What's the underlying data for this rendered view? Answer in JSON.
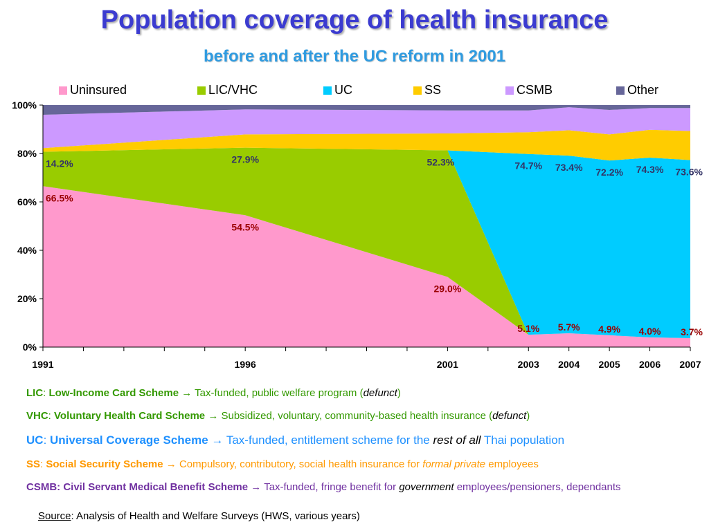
{
  "title": "Population coverage of health insurance",
  "subtitle": "before and after the UC reform in 2001",
  "chart_data": {
    "type": "area",
    "stacked": true,
    "x": [
      1991,
      1996,
      2001,
      2003,
      2004,
      2005,
      2006,
      2007
    ],
    "xticks_labeled": [
      "1991",
      "1996",
      "2001",
      "2003",
      "2004",
      "2005",
      "2006",
      "2007"
    ],
    "ylim": [
      0,
      100
    ],
    "yticks": [
      "0%",
      "20%",
      "40%",
      "60%",
      "80%",
      "100%"
    ],
    "legend_position": "top",
    "series": [
      {
        "name": "Uninsured",
        "color": "#ff99cc",
        "values": [
          66.5,
          54.5,
          29.0,
          5.1,
          5.7,
          4.9,
          4.0,
          3.7
        ]
      },
      {
        "name": "LIC/VHC",
        "color": "#99cc00",
        "values": [
          14.2,
          27.9,
          52.3,
          0.0,
          0.0,
          0.0,
          0.0,
          0.0
        ]
      },
      {
        "name": "UC",
        "color": "#00ccff",
        "values": [
          0.0,
          0.0,
          0.0,
          74.7,
          73.4,
          72.2,
          74.3,
          73.6
        ]
      },
      {
        "name": "SS",
        "color": "#ffcc00",
        "values": [
          1.5,
          5.5,
          7.0,
          9.0,
          10.5,
          10.8,
          11.5,
          12.0
        ]
      },
      {
        "name": "CSMB",
        "color": "#cc99ff",
        "values": [
          13.8,
          10.3,
          9.5,
          9.0,
          9.5,
          10.1,
          9.0,
          9.5
        ]
      },
      {
        "name": "Other",
        "color": "#666699",
        "values": [
          4.0,
          1.8,
          2.2,
          2.2,
          0.9,
          2.0,
          1.2,
          1.2
        ]
      }
    ],
    "data_labels": [
      {
        "series": "LIC/VHC",
        "year": 1991,
        "text": "14.2%",
        "color": "#333366"
      },
      {
        "series": "LIC/VHC",
        "year": 1996,
        "text": "27.9%",
        "color": "#333366"
      },
      {
        "series": "LIC/VHC",
        "year": 2001,
        "text": "52.3%",
        "color": "#333366"
      },
      {
        "series": "UC",
        "year": 2003,
        "text": "74.7%",
        "color": "#333366"
      },
      {
        "series": "UC",
        "year": 2004,
        "text": "73.4%",
        "color": "#333366"
      },
      {
        "series": "UC",
        "year": 2005,
        "text": "72.2%",
        "color": "#333366"
      },
      {
        "series": "UC",
        "year": 2006,
        "text": "74.3%",
        "color": "#333366"
      },
      {
        "series": "UC",
        "year": 2007,
        "text": "73.6%",
        "color": "#333366"
      },
      {
        "series": "Uninsured",
        "year": 1991,
        "text": "66.5%",
        "color": "#990000"
      },
      {
        "series": "Uninsured",
        "year": 1996,
        "text": "54.5%",
        "color": "#990000"
      },
      {
        "series": "Uninsured",
        "year": 2001,
        "text": "29.0%",
        "color": "#990000"
      },
      {
        "series": "Uninsured",
        "year": 2003,
        "text": "5.1%",
        "color": "#990000"
      },
      {
        "series": "Uninsured",
        "year": 2004,
        "text": "5.7%",
        "color": "#990000"
      },
      {
        "series": "Uninsured",
        "year": 2005,
        "text": "4.9%",
        "color": "#990000"
      },
      {
        "series": "Uninsured",
        "year": 2006,
        "text": "4.0%",
        "color": "#990000"
      },
      {
        "series": "Uninsured",
        "year": 2007,
        "text": "3.7%",
        "color": "#990000"
      }
    ]
  },
  "notes": [
    {
      "abbr": "LIC",
      "name": "Low-Income Card Scheme",
      "arrow": "→",
      "desc": "Tax-funded, public welfare program (",
      "emph": "defunct",
      "tail": ")",
      "color": "#339900",
      "size": "normal"
    },
    {
      "abbr": "VHC",
      "name": "Voluntary Health Card Scheme",
      "arrow": "→",
      "desc": "Subsidized, voluntary, community-based health insurance (",
      "emph": "defunct",
      "tail": ")",
      "color": "#339900",
      "size": "normal"
    },
    {
      "abbr": "UC",
      "name": "Universal Coverage Scheme",
      "arrow": "→",
      "desc": "Tax-funded, entitlement scheme for the ",
      "emph": "rest of all",
      "tail": " Thai population",
      "color": "#1e90ff",
      "size": "big"
    },
    {
      "abbr": "SS",
      "name": "Social Security Scheme",
      "arrow": "→",
      "desc": "Compulsory, contributory, social health insurance for ",
      "emph": "formal private",
      "tail": " employees",
      "color": "#ff9900",
      "size": "normal"
    },
    {
      "abbr": "CSMB",
      "name": "Civil Servant Medical Benefit Scheme",
      "arrow": "→",
      "desc": "Tax-funded, fringe benefit for ",
      "emph": "government",
      "tail": " employees/pensioners, dependants",
      "color": "#7030a0",
      "size": "normal"
    }
  ],
  "source": {
    "label": "Source",
    "text": ": Analysis of Health and Welfare Surveys (HWS, various years)"
  }
}
